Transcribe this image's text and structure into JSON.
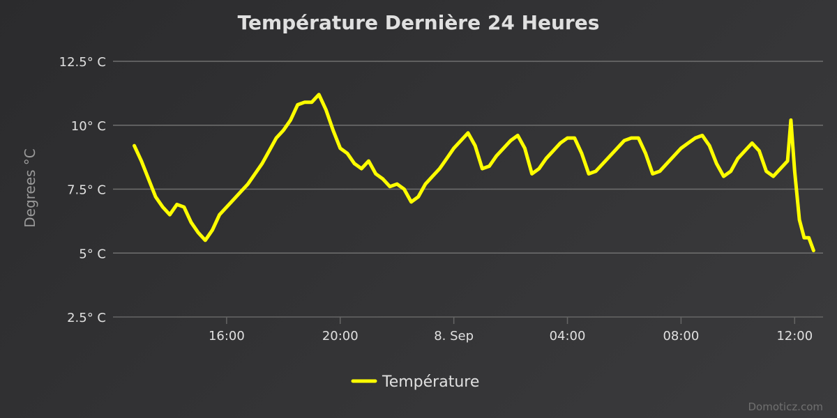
{
  "chart_data": {
    "type": "line",
    "title": "Température Dernière 24 Heures",
    "ylabel": "Degrees °C",
    "ylim": [
      2.5,
      12.5
    ],
    "yticks": [
      2.5,
      5,
      7.5,
      10,
      12.5
    ],
    "ytick_labels": [
      "2.5° C",
      "5° C",
      "7.5° C",
      "10° C",
      "12.5° C"
    ],
    "xlim": [
      "2023-09-07T12:00",
      "2023-09-08T13:00"
    ],
    "xticks": [
      "2023-09-07T16:00",
      "2023-09-07T20:00",
      "2023-09-08T00:00",
      "2023-09-08T04:00",
      "2023-09-08T08:00",
      "2023-09-08T12:00"
    ],
    "xtick_labels": [
      "16:00",
      "20:00",
      "8. Sep",
      "04:00",
      "08:00",
      "12:00"
    ],
    "grid": true,
    "legend_position": "bottom-center",
    "series": [
      {
        "name": "Température",
        "color": "#ffff00",
        "x": [
          "2023-09-07T12:45",
          "2023-09-07T13:00",
          "2023-09-07T13:15",
          "2023-09-07T13:30",
          "2023-09-07T13:45",
          "2023-09-07T14:00",
          "2023-09-07T14:15",
          "2023-09-07T14:30",
          "2023-09-07T14:45",
          "2023-09-07T15:00",
          "2023-09-07T15:15",
          "2023-09-07T15:30",
          "2023-09-07T15:45",
          "2023-09-07T16:00",
          "2023-09-07T16:15",
          "2023-09-07T16:30",
          "2023-09-07T16:45",
          "2023-09-07T17:00",
          "2023-09-07T17:15",
          "2023-09-07T17:30",
          "2023-09-07T17:45",
          "2023-09-07T18:00",
          "2023-09-07T18:15",
          "2023-09-07T18:30",
          "2023-09-07T18:45",
          "2023-09-07T19:00",
          "2023-09-07T19:15",
          "2023-09-07T19:30",
          "2023-09-07T19:45",
          "2023-09-07T20:00",
          "2023-09-07T20:15",
          "2023-09-07T20:30",
          "2023-09-07T20:45",
          "2023-09-07T21:00",
          "2023-09-07T21:15",
          "2023-09-07T21:30",
          "2023-09-07T21:45",
          "2023-09-07T22:00",
          "2023-09-07T22:15",
          "2023-09-07T22:30",
          "2023-09-07T22:45",
          "2023-09-07T23:00",
          "2023-09-07T23:15",
          "2023-09-07T23:30",
          "2023-09-07T23:45",
          "2023-09-08T00:00",
          "2023-09-08T00:15",
          "2023-09-08T00:30",
          "2023-09-08T00:45",
          "2023-09-08T01:00",
          "2023-09-08T01:15",
          "2023-09-08T01:30",
          "2023-09-08T01:45",
          "2023-09-08T02:00",
          "2023-09-08T02:15",
          "2023-09-08T02:30",
          "2023-09-08T02:45",
          "2023-09-08T03:00",
          "2023-09-08T03:15",
          "2023-09-08T03:30",
          "2023-09-08T03:45",
          "2023-09-08T04:00",
          "2023-09-08T04:15",
          "2023-09-08T04:30",
          "2023-09-08T04:45",
          "2023-09-08T05:00",
          "2023-09-08T05:15",
          "2023-09-08T05:30",
          "2023-09-08T05:45",
          "2023-09-08T06:00",
          "2023-09-08T06:15",
          "2023-09-08T06:30",
          "2023-09-08T06:45",
          "2023-09-08T07:00",
          "2023-09-08T07:15",
          "2023-09-08T07:30",
          "2023-09-08T07:45",
          "2023-09-08T08:00",
          "2023-09-08T08:15",
          "2023-09-08T08:30",
          "2023-09-08T08:45",
          "2023-09-08T09:00",
          "2023-09-08T09:15",
          "2023-09-08T09:30",
          "2023-09-08T09:45",
          "2023-09-08T10:00",
          "2023-09-08T10:15",
          "2023-09-08T10:30",
          "2023-09-08T10:45",
          "2023-09-08T11:00",
          "2023-09-08T11:15",
          "2023-09-08T11:30",
          "2023-09-08T11:45",
          "2023-09-08T11:52",
          "2023-09-08T12:00",
          "2023-09-08T12:10",
          "2023-09-08T12:20",
          "2023-09-08T12:30",
          "2023-09-08T12:40"
        ],
        "values": [
          9.2,
          8.6,
          7.9,
          7.2,
          6.8,
          6.5,
          6.9,
          6.8,
          6.2,
          5.8,
          5.5,
          5.9,
          6.5,
          6.8,
          7.1,
          7.4,
          7.7,
          8.1,
          8.5,
          9.0,
          9.5,
          9.8,
          10.2,
          10.8,
          10.9,
          10.9,
          11.2,
          10.6,
          9.8,
          9.1,
          8.9,
          8.5,
          8.3,
          8.6,
          8.1,
          7.9,
          7.6,
          7.7,
          7.5,
          7.0,
          7.2,
          7.7,
          8.0,
          8.3,
          8.7,
          9.1,
          9.4,
          9.7,
          9.2,
          8.3,
          8.4,
          8.8,
          9.1,
          9.4,
          9.6,
          9.1,
          8.1,
          8.3,
          8.7,
          9.0,
          9.3,
          9.5,
          9.5,
          8.9,
          8.1,
          8.2,
          8.5,
          8.8,
          9.1,
          9.4,
          9.5,
          9.5,
          8.9,
          8.1,
          8.2,
          8.5,
          8.8,
          9.1,
          9.3,
          9.5,
          9.6,
          9.2,
          8.5,
          8.0,
          8.2,
          8.7,
          9.0,
          9.3,
          9.0,
          8.2,
          8.0,
          8.3,
          8.6,
          10.2,
          8.2,
          6.3,
          5.6,
          5.6,
          5.1
        ]
      }
    ]
  },
  "credits": "Domoticz.com"
}
